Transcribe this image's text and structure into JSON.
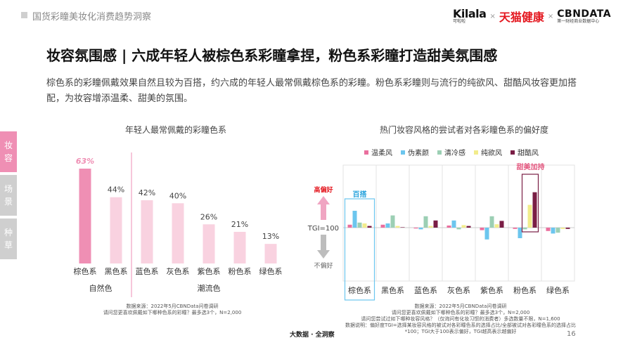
{
  "header": {
    "section_title": "国货彩瞳美妆化消费趋势洞察",
    "logos": {
      "kilala": "Kilala",
      "kilala_sub": "可啦啦",
      "tmall": "天猫健康",
      "cbn": "CBNDATA",
      "cbn_sub": "第一财经商业数据中心",
      "separator": "×"
    }
  },
  "main": {
    "title": "妆容氛围感 | 六成年轻人被棕色系彩瞳拿捏，粉色系彩瞳打造甜美氛围感",
    "description": "棕色系的彩瞳佩戴效果自然且较为百搭，约六成的年轻人最常佩戴棕色系的彩瞳。粉色系彩瞳则与流行的纯欲风、甜酷风妆容更加搭配，为妆容增添温柔、甜美的氛围。"
  },
  "side_nav": [
    {
      "label": "妆容",
      "active": true
    },
    {
      "label": "场景",
      "active": false
    },
    {
      "label": "种草",
      "active": false
    }
  ],
  "chart_data": [
    {
      "type": "bar",
      "title": "年轻人最常佩戴的彩瞳色系",
      "categories": [
        "棕色系",
        "黑色系",
        "蓝色系",
        "灰色系",
        "紫色系",
        "粉色系",
        "绿色系"
      ],
      "values": [
        63,
        44,
        42,
        40,
        26,
        21,
        13
      ],
      "value_labels": [
        "63%",
        "44%",
        "42%",
        "40%",
        "26%",
        "21%",
        "13%"
      ],
      "ylim": [
        0,
        70
      ],
      "groups": [
        {
          "label": "自然色",
          "categories": [
            "棕色系",
            "黑色系"
          ]
        },
        {
          "label": "潮流色",
          "categories": [
            "蓝色系",
            "灰色系",
            "紫色系",
            "粉色系",
            "绿色系"
          ]
        }
      ],
      "colors": {
        "highlight": "#ef8fb4",
        "default": "#f9d2e0",
        "highlight_label": "#ef8fb4"
      },
      "source_note": [
        "数据来源：2022年5月CBNData问卷调研",
        "请问您更喜欢佩戴如下哪种色系的彩瞳？最多选3个，N=2,000"
      ]
    },
    {
      "type": "bar",
      "title": "热门妆容风格的尝试者对各彩瞳色系的偏好度",
      "categories": [
        "棕色系",
        "黑色系",
        "蓝色系",
        "灰色系",
        "紫色系",
        "粉色系",
        "绿色系"
      ],
      "baseline": 100,
      "baseline_label": "TGI=100",
      "ylim": [
        50,
        190
      ],
      "series": [
        {
          "name": "温柔风",
          "color": "#ea6f9e",
          "values": [
            107,
            107,
            98,
            105,
            94,
            97,
            92
          ]
        },
        {
          "name": "伪素颜",
          "color": "#6cc6ee",
          "values": [
            140,
            110,
            96,
            117,
            72,
            75,
            86
          ]
        },
        {
          "name": "清冷感",
          "color": "#9ccfb4",
          "values": [
            112,
            129,
            127,
            96,
            127,
            96,
            88
          ]
        },
        {
          "name": "纯欲风",
          "color": "#f2ec8c",
          "values": [
            110,
            104,
            104,
            106,
            108,
            154,
            97
          ]
        },
        {
          "name": "甜酷风",
          "color": "#7a1e45",
          "values": [
            104,
            101,
            117,
            104,
            116,
            184,
            97
          ]
        }
      ],
      "axis_labels": {
        "up": "高偏好",
        "down": "不偏好"
      },
      "annotations": [
        {
          "text": "百搭",
          "category": "棕色系"
        },
        {
          "text": "甜美加持",
          "category": "粉色系"
        }
      ],
      "source_note": [
        "数据来源：2022年5月CBNData问卷调研",
        "请问您更喜欢佩戴如下哪种色系的彩瞳？最多选3个，N=2,000",
        "请问您尝试过如下哪种妆容风格？（仅询问有化妆习惯的消费者）多选数量不限，N=1,600",
        "数据说明：偏好度TGI=选择某妆容风格的被试对各彩瞳色系的选择占比/全部被试对各彩瞳色系的选择占比",
        "*100；TGI大于100表示偏好，TGI越高表示越偏好"
      ]
    }
  ],
  "footer": {
    "brand": "大数据 · 全洞察",
    "page": "16"
  }
}
